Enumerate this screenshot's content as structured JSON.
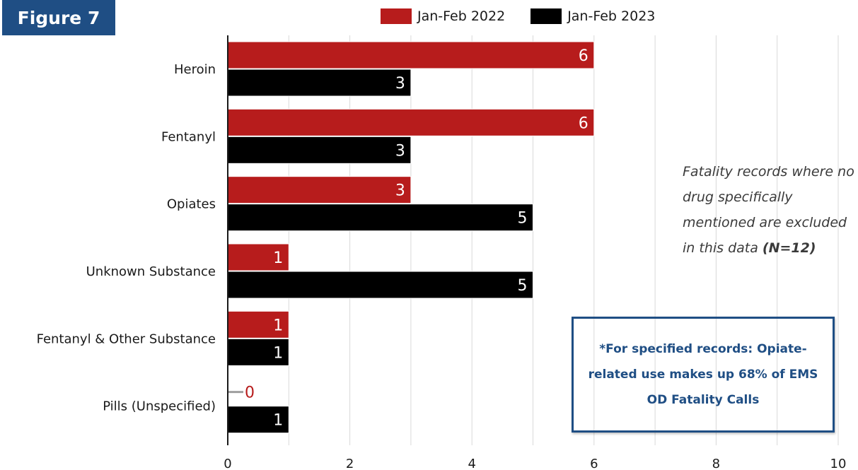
{
  "figure_label": "Figure 7",
  "note": {
    "text": "Fatality records where no drug specifically mentioned are excluded in this data",
    "bold": "(N=12)"
  },
  "callout": "*For specified records: Opiate-related use makes up 68% of EMS OD Fatality Calls",
  "chart_data": {
    "type": "bar",
    "orientation": "horizontal",
    "categories": [
      "Heroin",
      "Fentanyl",
      "Opiates",
      "Unknown Substance",
      "Fentanyl & Other Substance",
      "Pills (Unspecified)"
    ],
    "series": [
      {
        "name": "Jan-Feb 2022",
        "color": "#b71c1c",
        "values": [
          6,
          6,
          3,
          1,
          1,
          0
        ]
      },
      {
        "name": "Jan-Feb 2023",
        "color": "#000000",
        "values": [
          3,
          3,
          5,
          5,
          1,
          1
        ]
      }
    ],
    "xlim": [
      0,
      10
    ],
    "xticks": [
      0,
      2,
      4,
      6,
      8,
      10
    ],
    "grid": true,
    "legend_position": "top",
    "data_labels": true
  }
}
